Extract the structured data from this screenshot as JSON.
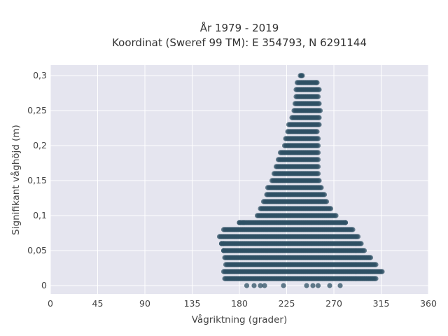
{
  "chart_data": {
    "type": "scatter",
    "title_line1": "År 1979 - 2019",
    "title_line2": "Koordinat (Sweref 99 TM): E 354793, N 6291144",
    "xlabel": "Vågriktning (grader)",
    "ylabel": "Signifikant våghöjd (m)",
    "xlim": [
      0,
      360
    ],
    "ylim": [
      -0.012,
      0.315
    ],
    "x_ticks": [
      0,
      45,
      90,
      135,
      180,
      225,
      270,
      315,
      360
    ],
    "x_tick_labels": [
      "0",
      "45",
      "90",
      "135",
      "180",
      "225",
      "270",
      "315",
      "360"
    ],
    "y_ticks": [
      0,
      0.05,
      0.1,
      0.15,
      0.2,
      0.25,
      0.3
    ],
    "y_tick_labels": [
      "0",
      "0,05",
      "0,1",
      "0,15",
      "0,2",
      "0,25",
      "0,3"
    ],
    "grid": true,
    "marker_color": "#2d5064",
    "plot_background": "#e5e5ef",
    "bands": [
      {
        "y": 0.0,
        "x_min": 186,
        "x_max": 275,
        "sparse": true
      },
      {
        "y": 0.01,
        "x_min": 166,
        "x_max": 310
      },
      {
        "y": 0.02,
        "x_min": 165,
        "x_max": 316
      },
      {
        "y": 0.03,
        "x_min": 167,
        "x_max": 310
      },
      {
        "y": 0.04,
        "x_min": 166,
        "x_max": 305
      },
      {
        "y": 0.05,
        "x_min": 165,
        "x_max": 299
      },
      {
        "y": 0.06,
        "x_min": 163,
        "x_max": 296
      },
      {
        "y": 0.07,
        "x_min": 161,
        "x_max": 293
      },
      {
        "y": 0.08,
        "x_min": 165,
        "x_max": 288
      },
      {
        "y": 0.09,
        "x_min": 180,
        "x_max": 281
      },
      {
        "y": 0.1,
        "x_min": 197,
        "x_max": 272
      },
      {
        "y": 0.11,
        "x_min": 200,
        "x_max": 267
      },
      {
        "y": 0.12,
        "x_min": 203,
        "x_max": 263
      },
      {
        "y": 0.13,
        "x_min": 206,
        "x_max": 261
      },
      {
        "y": 0.14,
        "x_min": 207,
        "x_max": 258
      },
      {
        "y": 0.15,
        "x_min": 211,
        "x_max": 256
      },
      {
        "y": 0.16,
        "x_min": 213,
        "x_max": 255
      },
      {
        "y": 0.17,
        "x_min": 215,
        "x_max": 255
      },
      {
        "y": 0.18,
        "x_min": 217,
        "x_max": 255
      },
      {
        "y": 0.19,
        "x_min": 219,
        "x_max": 255
      },
      {
        "y": 0.2,
        "x_min": 223,
        "x_max": 255
      },
      {
        "y": 0.21,
        "x_min": 224,
        "x_max": 255
      },
      {
        "y": 0.22,
        "x_min": 226,
        "x_max": 254
      },
      {
        "y": 0.23,
        "x_min": 227,
        "x_max": 256
      },
      {
        "y": 0.24,
        "x_min": 230,
        "x_max": 256
      },
      {
        "y": 0.25,
        "x_min": 232,
        "x_max": 257
      },
      {
        "y": 0.26,
        "x_min": 233,
        "x_max": 256
      },
      {
        "y": 0.27,
        "x_min": 234,
        "x_max": 255
      },
      {
        "y": 0.28,
        "x_min": 234,
        "x_max": 256
      },
      {
        "y": 0.29,
        "x_min": 235,
        "x_max": 254
      },
      {
        "y": 0.3,
        "x_min": 238,
        "x_max": 240
      }
    ],
    "outliers": [
      {
        "x": 187,
        "y": 0.0
      },
      {
        "x": 194,
        "y": 0.0
      },
      {
        "x": 200,
        "y": 0.0
      },
      {
        "x": 204,
        "y": 0.0
      },
      {
        "x": 222,
        "y": 0.0
      },
      {
        "x": 244,
        "y": 0.0
      },
      {
        "x": 250,
        "y": 0.0
      },
      {
        "x": 255,
        "y": 0.0
      },
      {
        "x": 266,
        "y": 0.0
      },
      {
        "x": 276,
        "y": 0.0
      },
      {
        "x": 180,
        "y": 0.09
      },
      {
        "x": 184,
        "y": 0.09
      },
      {
        "x": 281,
        "y": 0.09
      },
      {
        "x": 163,
        "y": 0.06
      },
      {
        "x": 165,
        "y": 0.06
      },
      {
        "x": 165,
        "y": 0.05
      },
      {
        "x": 253,
        "y": 0.29
      },
      {
        "x": 239,
        "y": 0.3
      }
    ]
  }
}
